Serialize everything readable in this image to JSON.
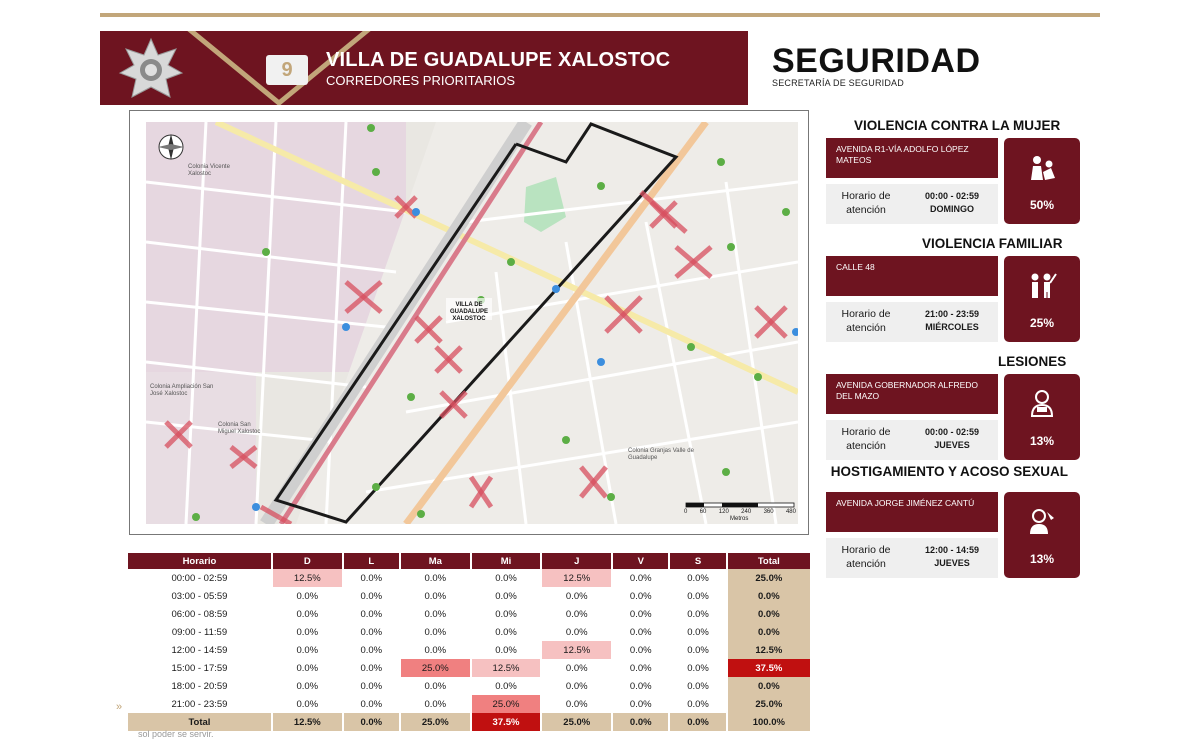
{
  "header": {
    "number": "9",
    "title": "VILLA DE GUADALUPE XALOSTOC",
    "subtitle": "CORREDORES PRIORITARIOS",
    "brand": "SEGURIDAD",
    "brand_sub": "SECRETARÍA DE SEGURIDAD"
  },
  "map": {
    "zone_label": "VILLA DE GUADALUPE XALOSTOC",
    "scale_ticks": [
      "0",
      "60",
      "120",
      "240",
      "360",
      "480"
    ],
    "scale_unit": "Metros",
    "areas": [
      "Colonia Vicente Xalostoc",
      "Colonia Ampliación San José Xalostoc",
      "Colonia San Miguel Xalostoc",
      "Colonia Granjas Valle de Guadalupe"
    ]
  },
  "table": {
    "headers": [
      "Horario",
      "D",
      "L",
      "Ma",
      "Mi",
      "J",
      "V",
      "S",
      "Total"
    ],
    "rows": [
      {
        "label": "00:00 - 02:59",
        "cells": [
          "12.5%",
          "0.0%",
          "0.0%",
          "0.0%",
          "12.5%",
          "0.0%",
          "0.0%",
          "25.0%"
        ]
      },
      {
        "label": "03:00 - 05:59",
        "cells": [
          "0.0%",
          "0.0%",
          "0.0%",
          "0.0%",
          "0.0%",
          "0.0%",
          "0.0%",
          "0.0%"
        ]
      },
      {
        "label": "06:00 - 08:59",
        "cells": [
          "0.0%",
          "0.0%",
          "0.0%",
          "0.0%",
          "0.0%",
          "0.0%",
          "0.0%",
          "0.0%"
        ]
      },
      {
        "label": "09:00 - 11:59",
        "cells": [
          "0.0%",
          "0.0%",
          "0.0%",
          "0.0%",
          "0.0%",
          "0.0%",
          "0.0%",
          "0.0%"
        ]
      },
      {
        "label": "12:00 - 14:59",
        "cells": [
          "0.0%",
          "0.0%",
          "0.0%",
          "0.0%",
          "12.5%",
          "0.0%",
          "0.0%",
          "12.5%"
        ]
      },
      {
        "label": "15:00 - 17:59",
        "cells": [
          "0.0%",
          "0.0%",
          "25.0%",
          "12.5%",
          "0.0%",
          "0.0%",
          "0.0%",
          "37.5%"
        ]
      },
      {
        "label": "18:00 - 20:59",
        "cells": [
          "0.0%",
          "0.0%",
          "0.0%",
          "0.0%",
          "0.0%",
          "0.0%",
          "0.0%",
          "0.0%"
        ]
      },
      {
        "label": "21:00 - 23:59",
        "cells": [
          "0.0%",
          "0.0%",
          "0.0%",
          "25.0%",
          "0.0%",
          "0.0%",
          "0.0%",
          "25.0%"
        ]
      }
    ],
    "total": {
      "label": "Total",
      "cells": [
        "12.5%",
        "0.0%",
        "25.0%",
        "37.5%",
        "25.0%",
        "0.0%",
        "0.0%",
        "100.0%"
      ]
    }
  },
  "cards": [
    {
      "title": "VIOLENCIA CONTRA LA MUJER",
      "location": "AVENIDA R1-VÍA ADOLFO LÓPEZ MATEOS",
      "hours_label": "Horario de atención",
      "time": "00:00 - 02:59",
      "day": "DOMINGO",
      "percent": "50%",
      "icon": "women-violence-icon"
    },
    {
      "title": "VIOLENCIA FAMILIAR",
      "location": "CALLE 48",
      "hours_label": "Horario de atención",
      "time": "21:00 - 23:59",
      "day": "MIÉRCOLES",
      "percent": "25%",
      "icon": "family-violence-icon"
    },
    {
      "title": "LESIONES",
      "location": "AVENIDA GOBERNADOR ALFREDO DEL MAZO",
      "hours_label": "Horario de atención",
      "time": "00:00 - 02:59",
      "day": "JUEVES",
      "percent": "13%",
      "icon": "injury-icon"
    },
    {
      "title": "HOSTIGAMIENTO Y ACOSO SEXUAL",
      "location": "AVENIDA JORGE JIMÉNEZ CANTÚ",
      "hours_label": "Horario de atención",
      "time": "12:00 - 14:59",
      "day": "JUEVES",
      "percent": "13%",
      "icon": "harassment-icon"
    }
  ],
  "footnote": "sol poder se servir."
}
